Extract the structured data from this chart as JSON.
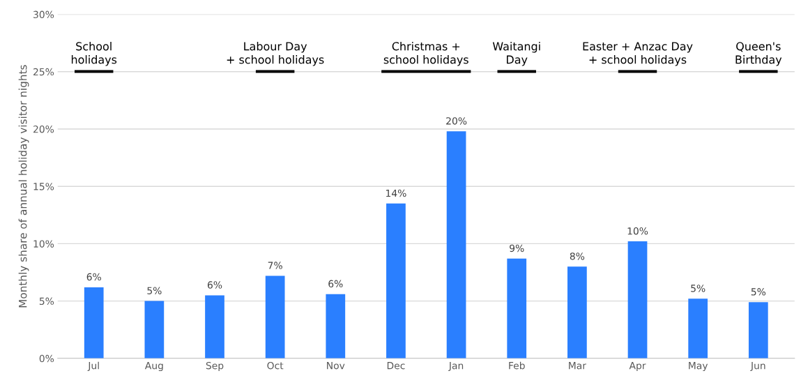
{
  "chart_data": {
    "type": "bar",
    "ylabel": "Monthly share of annual holiday visitor nights",
    "categories": [
      "Jul",
      "Aug",
      "Sep",
      "Oct",
      "Nov",
      "Dec",
      "Jan",
      "Feb",
      "Mar",
      "Apr",
      "May",
      "Jun"
    ],
    "values": [
      6.2,
      5.0,
      5.5,
      7.2,
      5.6,
      13.5,
      19.8,
      8.7,
      8.0,
      10.2,
      5.2,
      4.9
    ],
    "value_labels": [
      "6%",
      "5%",
      "6%",
      "7%",
      "6%",
      "14%",
      "20%",
      "9%",
      "8%",
      "10%",
      "5%",
      "5%"
    ],
    "color": "#2a7fff",
    "ylim": [
      0,
      30
    ],
    "yticks": [
      {
        "value": 0,
        "label": "0%"
      },
      {
        "value": 5,
        "label": "5%"
      },
      {
        "value": 10,
        "label": "10%"
      },
      {
        "value": 15,
        "label": "15%"
      },
      {
        "value": 20,
        "label": "20%"
      },
      {
        "value": 25,
        "label": "25%"
      },
      {
        "value": 30,
        "label": "30%"
      }
    ],
    "grid": "y",
    "annotations": [
      "School\nholidays",
      "Labour Day\n+ school holidays",
      "Christmas +\nschool holidays",
      "Waitangi\nDay",
      "Easter + Anzac Day\n+ school holidays",
      "Queen's\nBirthday"
    ]
  }
}
